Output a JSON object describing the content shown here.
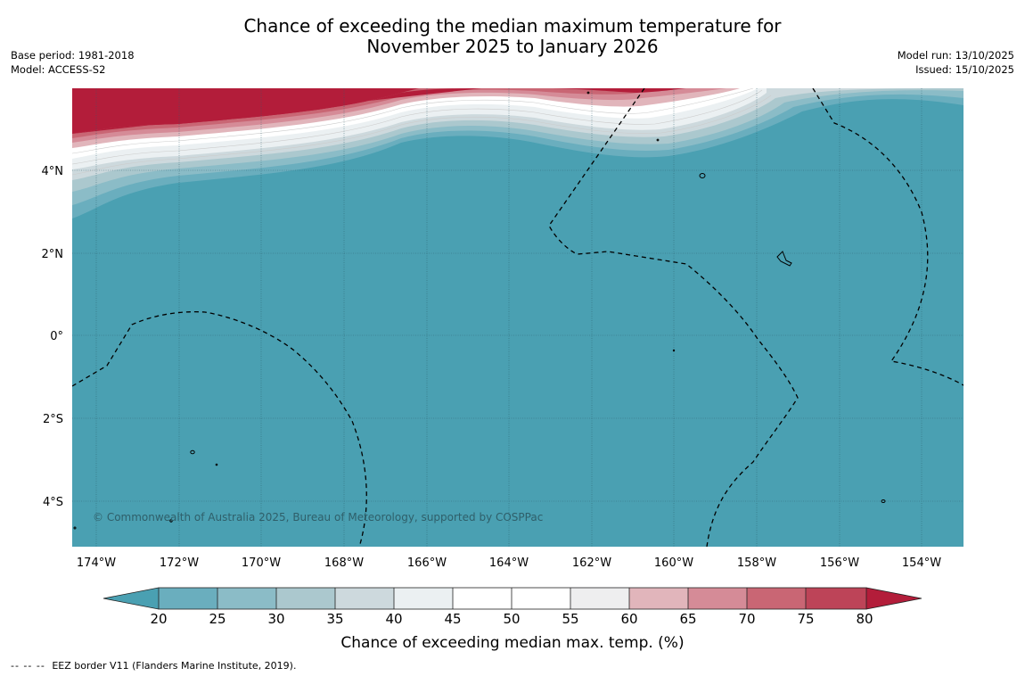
{
  "title": {
    "line1": "Chance of exceeding the median maximum temperature for",
    "line2": "November 2025 to January 2026"
  },
  "meta_left": {
    "base_period": "Base period: 1981-2018",
    "model": "Model: ACCESS-S2"
  },
  "meta_right": {
    "model_run": "Model run: 13/10/2025",
    "issued": "Issued: 15/10/2025"
  },
  "map": {
    "longitude_labels": [
      "174°W",
      "172°W",
      "170°W",
      "168°W",
      "166°W",
      "164°W",
      "162°W",
      "160°W",
      "158°W",
      "156°W",
      "154°W"
    ],
    "latitude_labels": [
      "4°N",
      "2°N",
      "0°",
      "2°S",
      "4°S"
    ],
    "copyright": "© Commonwealth of Australia 2025, Bureau of Meteorology, supported by COSPPac",
    "colors": {
      "below": "#4aa0b2",
      "above": "#b31d3a"
    }
  },
  "colorbar": {
    "ticks": [
      "20",
      "25",
      "30",
      "35",
      "40",
      "45",
      "50",
      "55",
      "60",
      "65",
      "70",
      "75",
      "80"
    ],
    "colors": [
      "#6aaebe",
      "#8bbcc7",
      "#abc8ce",
      "#cdd9dd",
      "#ebf0f2",
      "#ffffff",
      "#ffffff",
      "#eeeeef",
      "#e1b5bb",
      "#d58b97",
      "#c96674",
      "#bd4458"
    ],
    "low_color": "#4aa0b2",
    "high_color": "#b31d3a",
    "label": "Chance of exceeding median max. temp. (%)"
  },
  "footer": {
    "legend_symbol": "-- -- --",
    "legend_text": "EEZ border V11 (Flanders Marine Institute, 2019)."
  }
}
